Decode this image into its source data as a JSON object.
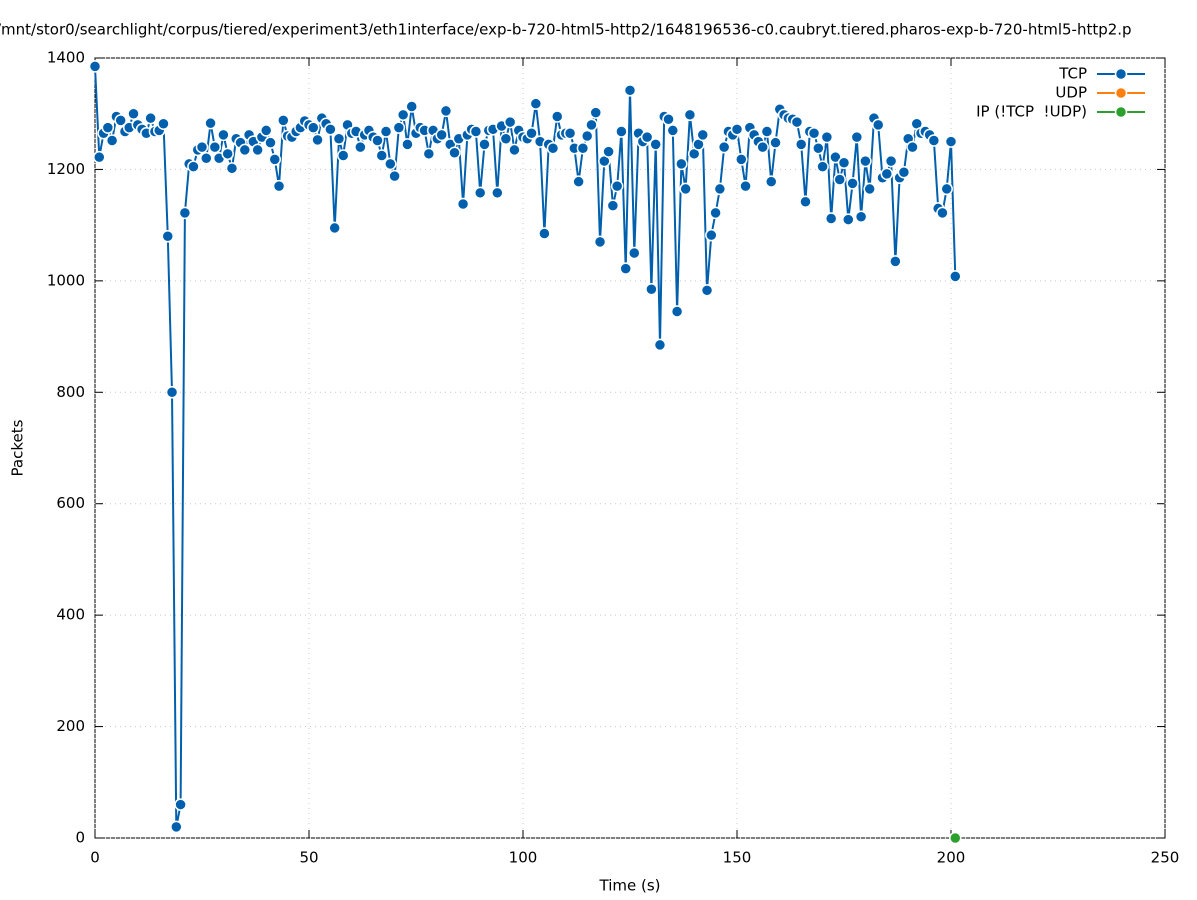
{
  "chart_data": {
    "type": "line",
    "title": "/mnt/stor0/searchlight/corpus/tiered/experiment3/eth1interface/exp-b-720-html5-http2/1648196536-c0.caubryt.tiered.pharos-exp-b-720-html5-http2.p",
    "x_label": "Time (s)",
    "y_label": "Packets",
    "xlim": [
      0,
      250
    ],
    "xticks": [
      0,
      50,
      100,
      150,
      200,
      250
    ],
    "ylim": [
      0,
      1400
    ],
    "yticks": [
      0,
      200,
      400,
      600,
      800,
      1000,
      1200,
      1400
    ],
    "grid": true,
    "legend": "top-right",
    "series": [
      {
        "name": "TCP",
        "color": "#0060ad",
        "x": [
          0,
          1,
          2,
          3,
          4,
          5,
          6,
          7,
          8,
          9,
          10,
          11,
          12,
          13,
          14,
          15,
          16,
          17,
          18,
          19,
          20,
          21,
          22,
          23,
          24,
          25,
          26,
          27,
          28,
          29,
          30,
          31,
          32,
          33,
          34,
          35,
          36,
          37,
          38,
          39,
          40,
          41,
          42,
          43,
          44,
          45,
          46,
          47,
          48,
          49,
          50,
          51,
          52,
          53,
          54,
          55,
          56,
          57,
          58,
          59,
          60,
          61,
          62,
          63,
          64,
          65,
          66,
          67,
          68,
          69,
          70,
          71,
          72,
          73,
          74,
          75,
          76,
          77,
          78,
          79,
          80,
          81,
          82,
          83,
          84,
          85,
          86,
          87,
          88,
          89,
          90,
          91,
          92,
          93,
          94,
          95,
          96,
          97,
          98,
          99,
          100,
          101,
          102,
          103,
          104,
          105,
          106,
          107,
          108,
          109,
          110,
          111,
          112,
          113,
          114,
          115,
          116,
          117,
          118,
          119,
          120,
          121,
          122,
          123,
          124,
          125,
          126,
          127,
          128,
          129,
          130,
          131,
          132,
          133,
          134,
          135,
          136,
          137,
          138,
          139,
          140,
          141,
          142,
          143,
          144,
          145,
          146,
          147,
          148,
          149,
          150,
          151,
          152,
          153,
          154,
          155,
          156,
          157,
          158,
          159,
          160,
          161,
          162,
          163,
          164,
          165,
          166,
          167,
          168,
          169,
          170,
          171,
          172,
          173,
          174,
          175,
          176,
          177,
          178,
          179,
          180,
          181,
          182,
          183,
          184,
          185,
          186,
          187,
          188,
          189,
          190,
          191,
          192,
          193,
          194,
          195,
          196,
          197,
          198,
          199,
          200,
          201
        ],
        "values": [
          1385,
          1222,
          1265,
          1275,
          1252,
          1295,
          1288,
          1268,
          1275,
          1300,
          1280,
          1272,
          1265,
          1292,
          1268,
          1270,
          1282,
          1080,
          800,
          20,
          60,
          1122,
          1210,
          1205,
          1235,
          1240,
          1220,
          1283,
          1240,
          1220,
          1262,
          1228,
          1202,
          1255,
          1248,
          1235,
          1262,
          1250,
          1235,
          1258,
          1270,
          1248,
          1218,
          1170,
          1288,
          1260,
          1258,
          1268,
          1275,
          1287,
          1280,
          1275,
          1253,
          1292,
          1282,
          1272,
          1095,
          1255,
          1225,
          1280,
          1265,
          1268,
          1240,
          1262,
          1270,
          1258,
          1252,
          1225,
          1268,
          1210,
          1188,
          1275,
          1298,
          1245,
          1313,
          1265,
          1275,
          1270,
          1228,
          1270,
          1255,
          1262,
          1305,
          1245,
          1230,
          1255,
          1138,
          1262,
          1272,
          1268,
          1158,
          1245,
          1270,
          1272,
          1158,
          1278,
          1255,
          1285,
          1235,
          1270,
          1258,
          1255,
          1265,
          1318,
          1250,
          1085,
          1245,
          1238,
          1295,
          1262,
          1265,
          1265,
          1238,
          1178,
          1238,
          1260,
          1280,
          1302,
          1070,
          1215,
          1232,
          1135,
          1170,
          1268,
          1022,
          1342,
          1050,
          1265,
          1250,
          1258,
          985,
          1245,
          885,
          1295,
          1290,
          1270,
          945,
          1210,
          1165,
          1298,
          1228,
          1245,
          1262,
          983,
          1082,
          1122,
          1165,
          1240,
          1268,
          1262,
          1272,
          1218,
          1170,
          1275,
          1262,
          1250,
          1240,
          1268,
          1178,
          1248,
          1308,
          1298,
          1292,
          1290,
          1285,
          1245,
          1142,
          1268,
          1265,
          1238,
          1205,
          1258,
          1112,
          1222,
          1182,
          1212,
          1110,
          1175,
          1258,
          1115,
          1215,
          1165,
          1292,
          1280,
          1185,
          1192,
          1215,
          1035,
          1185,
          1195,
          1255,
          1240,
          1282,
          1265,
          1268,
          1262,
          1252,
          1130,
          1122,
          1165,
          1250,
          1008
        ]
      },
      {
        "name": "UDP",
        "color": "#ff7f0e",
        "x": [],
        "values": []
      },
      {
        "name": "IP (!TCP  !UDP)",
        "color": "#2ca02c",
        "x": [
          201
        ],
        "values": [
          0
        ]
      }
    ]
  }
}
